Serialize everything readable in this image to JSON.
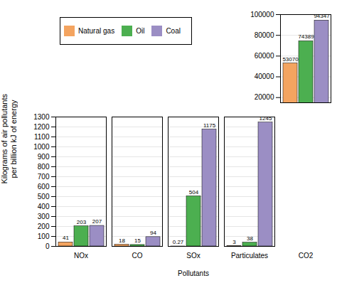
{
  "chart_data": [
    {
      "type": "bar",
      "categories": [
        "NOx",
        "CO",
        "SOx",
        "Particulates",
        "CO2"
      ],
      "series": [
        {
          "name": "Natural gas",
          "color": "#F4A460",
          "values": [
            null,
            null,
            null,
            null,
            53070
          ]
        },
        {
          "name": "Oil",
          "color": "#4CAF50",
          "values": [
            null,
            null,
            null,
            null,
            74389
          ]
        },
        {
          "name": "Coal",
          "color": "#9B8EC4",
          "values": [
            null,
            null,
            null,
            null,
            94347
          ]
        }
      ],
      "ylim": [
        15000,
        100000
      ],
      "yticks": [
        20000,
        40000,
        60000,
        80000,
        100000
      ],
      "grid": true,
      "legend": "upper left",
      "data_labels": true,
      "tick_labels": "y"
    },
    {
      "type": "bar",
      "xlabel": "Pollutants",
      "ylabel": "Kilograms of air pollutants\nper billion kJ of energy",
      "categories": [
        "NOx",
        "CO",
        "SOx",
        "Particulates",
        "CO2"
      ],
      "series": [
        {
          "name": "Natural gas",
          "color": "#F4A460",
          "values": [
            41,
            18,
            0.27,
            3,
            null
          ]
        },
        {
          "name": "Oil",
          "color": "#4CAF50",
          "values": [
            203,
            15,
            504,
            38,
            null
          ]
        },
        {
          "name": "Coal",
          "color": "#9B8EC4",
          "values": [
            207,
            94,
            1175,
            1245,
            null
          ]
        }
      ],
      "ylim": [
        0,
        1300
      ],
      "yticks": [
        0,
        100,
        200,
        300,
        400,
        500,
        600,
        700,
        800,
        900,
        1000,
        1100,
        1200,
        1300
      ],
      "grid": true,
      "data_labels": true
    }
  ]
}
